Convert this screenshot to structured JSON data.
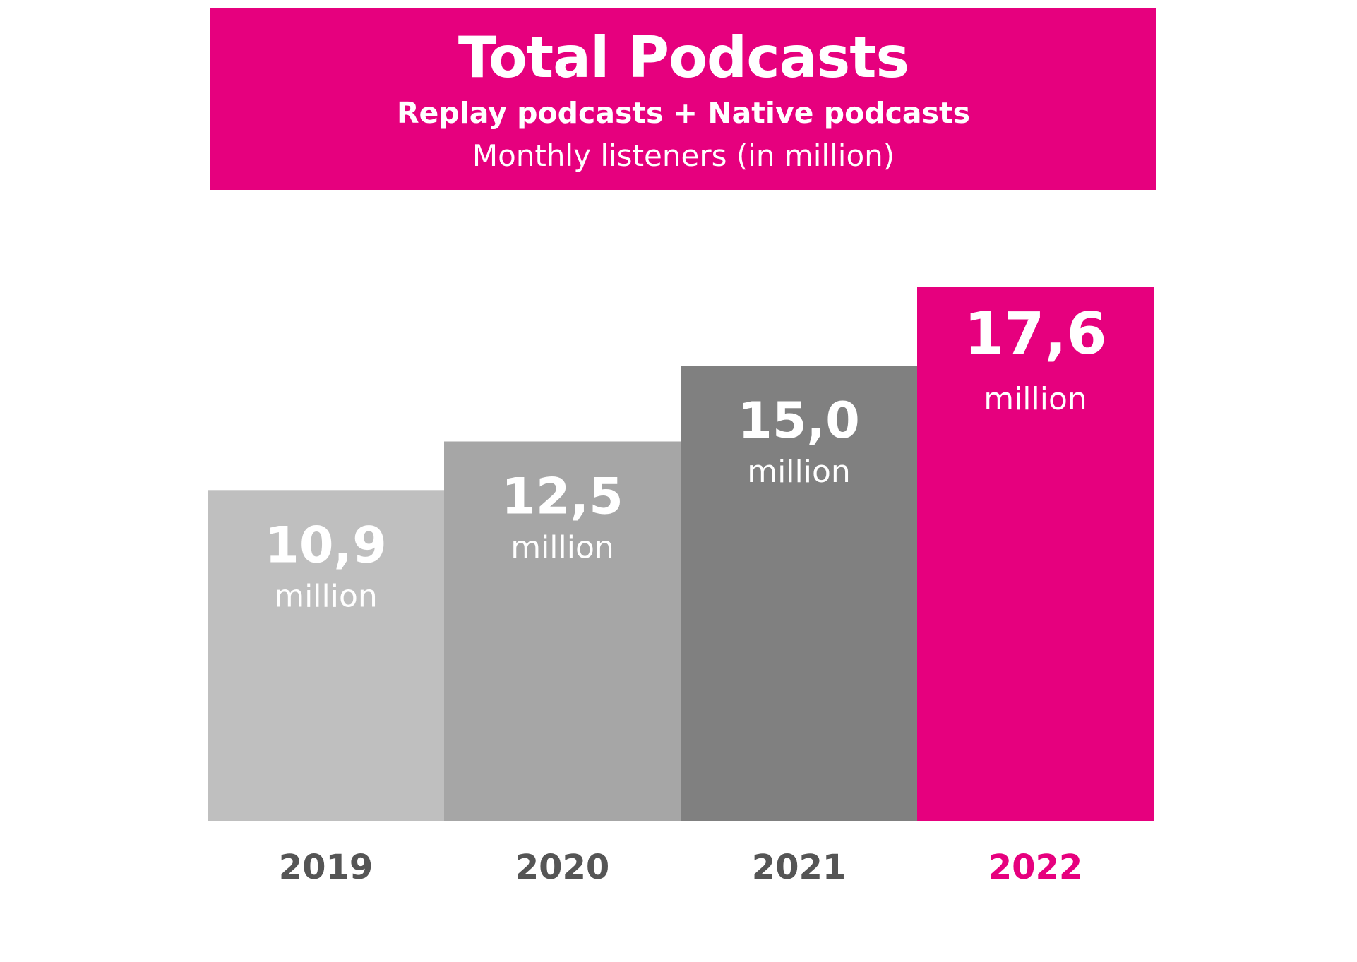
{
  "header": {
    "title": "Total Podcasts",
    "subtitle": "Replay podcasts + Native podcasts",
    "units": "Monthly listeners (in million)"
  },
  "colors": {
    "accent": "#e6007e",
    "label_gray": "#555555"
  },
  "chart_data": {
    "type": "bar",
    "title": "Total Podcasts",
    "subtitle": "Replay podcasts + Native podcasts",
    "ylabel": "Monthly listeners (in million)",
    "categories": [
      "2019",
      "2020",
      "2021",
      "2022"
    ],
    "values": [
      10.9,
      12.5,
      15.0,
      17.6
    ],
    "value_labels": [
      "10,9",
      "12,5",
      "15,0",
      "17,6"
    ],
    "unit_label": "million",
    "bar_colors": [
      "#bfbfbf",
      "#a6a6a6",
      "#808080",
      "#e6007e"
    ],
    "label_colors": [
      "#555555",
      "#555555",
      "#555555",
      "#e6007e"
    ],
    "grid": false,
    "legend": "none"
  }
}
